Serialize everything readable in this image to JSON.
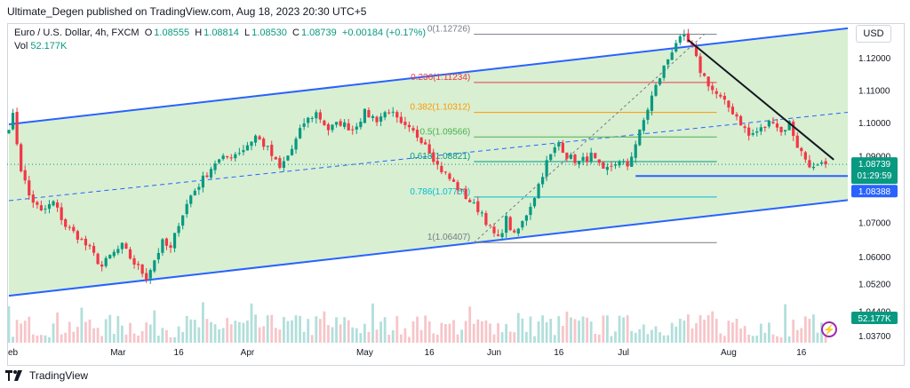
{
  "header": {
    "publisher_line": "Ultimate_Degen published on TradingView.com, Aug 18, 2023 20:30 UTC+5"
  },
  "legend": {
    "symbol": "Euro / U.S. Dollar, 4h, FXCM",
    "open_label": "O",
    "open": "1.08555",
    "high_label": "H",
    "high": "1.08814",
    "low_label": "L",
    "low": "1.08530",
    "close_label": "C",
    "close": "1.08739",
    "change": "+0.00184 (+0.17%)",
    "vol_label": "Vol",
    "vol": "52.177K"
  },
  "axis": {
    "currency": "USD",
    "price_ticks": [
      "1.12000",
      "1.11000",
      "1.10000",
      "1.09000",
      "1.07000",
      "1.06000",
      "1.05200",
      "1.04400",
      "1.03700"
    ],
    "time_ticks": [
      "eb",
      "Mar",
      "16",
      "Apr",
      "May",
      "16",
      "Jun",
      "16",
      "Jul",
      "Aug",
      "16"
    ]
  },
  "price_labels": {
    "current": "1.08739",
    "countdown": "01:29:59",
    "support": "1.08388",
    "volume": "52.177K"
  },
  "fib": {
    "levels": [
      {
        "label": "0(1.12726)",
        "color": "#787b86"
      },
      {
        "label": "0.236(1.11234)",
        "color": "#f23645"
      },
      {
        "label": "0.382(1.10312)",
        "color": "#ff9800"
      },
      {
        "label": "0.5(1.09566)",
        "color": "#4caf50"
      },
      {
        "label": "0.618(1.08821)",
        "color": "#089981"
      },
      {
        "label": "0.786(1.07759)",
        "color": "#00bcd4"
      },
      {
        "label": "1(1.06407)",
        "color": "#787b86"
      }
    ]
  },
  "footer": {
    "brand": "TradingView"
  },
  "colors": {
    "up": "#089981",
    "down": "#f23645",
    "channel": "#2962ff",
    "channel_fill": "#d8efd2",
    "trendline": "#131722"
  },
  "chart_data": {
    "type": "candlestick",
    "symbol": "EURUSD",
    "timeframe": "4h",
    "y_scale": "log",
    "ylim": [
      1.037,
      1.128
    ],
    "x_ticks": [
      "eb",
      "Mar",
      "16",
      "Apr",
      "May",
      "16",
      "Jun",
      "16",
      "Jul",
      "Aug",
      "16"
    ],
    "price_path": [
      [
        0,
        1.099
      ],
      [
        1,
        1.102
      ],
      [
        3,
        1.086
      ],
      [
        5,
        1.078
      ],
      [
        8,
        1.073
      ],
      [
        11,
        1.076
      ],
      [
        14,
        1.069
      ],
      [
        17,
        1.066
      ],
      [
        20,
        1.062
      ],
      [
        23,
        1.057
      ],
      [
        25,
        1.06
      ],
      [
        28,
        1.063
      ],
      [
        31,
        1.058
      ],
      [
        34,
        1.054
      ],
      [
        36,
        1.059
      ],
      [
        38,
        1.064
      ],
      [
        40,
        1.062
      ],
      [
        42,
        1.07
      ],
      [
        45,
        1.078
      ],
      [
        48,
        1.083
      ],
      [
        51,
        1.088
      ],
      [
        55,
        1.09
      ],
      [
        58,
        1.092
      ],
      [
        61,
        1.096
      ],
      [
        64,
        1.092
      ],
      [
        67,
        1.086
      ],
      [
        70,
        1.092
      ],
      [
        73,
        1.1
      ],
      [
        76,
        1.103
      ],
      [
        79,
        1.098
      ],
      [
        82,
        1.1
      ],
      [
        85,
        1.098
      ],
      [
        88,
        1.103
      ],
      [
        91,
        1.101
      ],
      [
        94,
        1.104
      ],
      [
        97,
        1.099
      ],
      [
        100,
        1.097
      ],
      [
        103,
        1.094
      ],
      [
        106,
        1.087
      ],
      [
        109,
        1.083
      ],
      [
        112,
        1.079
      ],
      [
        115,
        1.075
      ],
      [
        117,
        1.073
      ],
      [
        119,
        1.068
      ],
      [
        121,
        1.065
      ],
      [
        123,
        1.071
      ],
      [
        125,
        1.066
      ],
      [
        127,
        1.07
      ],
      [
        130,
        1.078
      ],
      [
        133,
        1.088
      ],
      [
        136,
        1.094
      ],
      [
        138,
        1.09
      ],
      [
        141,
        1.088
      ],
      [
        144,
        1.09
      ],
      [
        147,
        1.085
      ],
      [
        150,
        1.088
      ],
      [
        153,
        1.087
      ],
      [
        156,
        1.097
      ],
      [
        159,
        1.108
      ],
      [
        162,
        1.117
      ],
      [
        165,
        1.125
      ],
      [
        167,
        1.126
      ],
      [
        169,
        1.123
      ],
      [
        171,
        1.116
      ],
      [
        174,
        1.11
      ],
      [
        177,
        1.106
      ],
      [
        180,
        1.102
      ],
      [
        183,
        1.096
      ],
      [
        186,
        1.098
      ],
      [
        189,
        1.101
      ],
      [
        191,
        1.097
      ],
      [
        193,
        1.1
      ],
      [
        195,
        1.093
      ],
      [
        197,
        1.089
      ],
      [
        199,
        1.086
      ],
      [
        201,
        1.087
      ],
      [
        202,
        1.0874
      ]
    ],
    "trend_channel": {
      "upper": [
        [
          0,
          1.0995
        ],
        [
          210,
          1.1295
        ]
      ],
      "middle": [
        [
          0,
          1.0765
        ],
        [
          210,
          1.1035
        ]
      ],
      "lower": [
        [
          0,
          1.0485
        ],
        [
          210,
          1.077
        ]
      ]
    },
    "downtrend_line": [
      [
        168,
        1.1255
      ],
      [
        204,
        1.0888
      ]
    ],
    "support_line": {
      "value": 1.08388,
      "from": 155,
      "to": 204
    },
    "fib_retracement": {
      "from": 115,
      "to": 172,
      "levels": [
        {
          "ratio": 0,
          "price": 1.12726
        },
        {
          "ratio": 0.236,
          "price": 1.11234
        },
        {
          "ratio": 0.382,
          "price": 1.10312
        },
        {
          "ratio": 0.5,
          "price": 1.09566
        },
        {
          "ratio": 0.618,
          "price": 1.08821
        },
        {
          "ratio": 0.786,
          "price": 1.07759
        },
        {
          "ratio": 1,
          "price": 1.06407
        }
      ]
    },
    "last_close": 1.08739,
    "last_volume": "52.177K"
  }
}
